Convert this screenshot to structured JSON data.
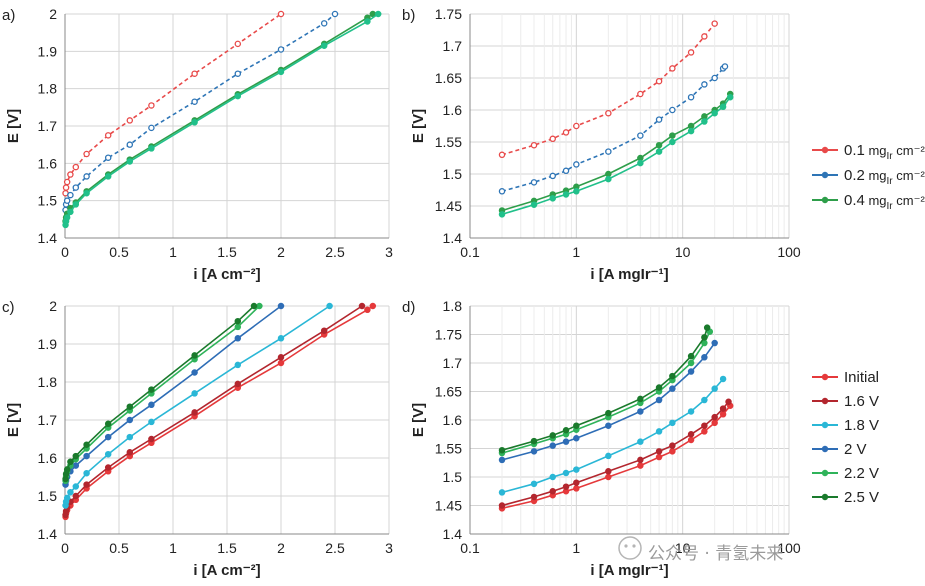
{
  "watermark": "公众号 · 青氢未来",
  "chart_data": [
    {
      "type": "line",
      "panel_label": "a)",
      "xscale": "linear",
      "xlim": [
        0,
        3
      ],
      "xticks": [
        0,
        0.5,
        1,
        1.5,
        2,
        2.5,
        3
      ],
      "ylim": [
        1.4,
        2.0
      ],
      "yticks": [
        1.4,
        1.5,
        1.6,
        1.7,
        1.8,
        1.9,
        2.0
      ],
      "xlabel": "i [A cm⁻²]",
      "ylabel": "E [V]",
      "grid": true,
      "series": [
        {
          "color": "#e84a4a",
          "dashed": true,
          "hollow": true,
          "x": [
            0.005,
            0.01,
            0.02,
            0.05,
            0.1,
            0.2,
            0.4,
            0.6,
            0.8,
            1.2,
            1.6,
            2.0
          ],
          "y": [
            1.52,
            1.535,
            1.55,
            1.57,
            1.59,
            1.625,
            1.675,
            1.715,
            1.755,
            1.84,
            1.92,
            2.0
          ]
        },
        {
          "color": "#2e75b6",
          "dashed": true,
          "hollow": true,
          "x": [
            0.005,
            0.01,
            0.02,
            0.05,
            0.1,
            0.2,
            0.4,
            0.6,
            0.8,
            1.2,
            1.6,
            2.0,
            2.4,
            2.5
          ],
          "y": [
            1.475,
            1.49,
            1.5,
            1.515,
            1.535,
            1.565,
            1.615,
            1.65,
            1.695,
            1.765,
            1.84,
            1.905,
            1.975,
            2.0
          ]
        },
        {
          "color": "#2e9e4a",
          "dashed": false,
          "hollow": false,
          "x": [
            0.005,
            0.01,
            0.02,
            0.05,
            0.1,
            0.2,
            0.4,
            0.6,
            0.8,
            1.2,
            1.6,
            2.0,
            2.4,
            2.8,
            2.85
          ],
          "y": [
            1.445,
            1.455,
            1.465,
            1.48,
            1.495,
            1.525,
            1.57,
            1.61,
            1.645,
            1.715,
            1.785,
            1.85,
            1.92,
            1.99,
            2.0
          ]
        },
        {
          "color": "#21c08a",
          "dashed": false,
          "hollow": false,
          "x": [
            0.005,
            0.01,
            0.02,
            0.05,
            0.1,
            0.2,
            0.4,
            0.6,
            0.8,
            1.2,
            1.6,
            2.0,
            2.4,
            2.8,
            2.9
          ],
          "y": [
            1.435,
            1.445,
            1.455,
            1.47,
            1.49,
            1.52,
            1.565,
            1.605,
            1.64,
            1.71,
            1.78,
            1.845,
            1.915,
            1.98,
            2.0
          ]
        }
      ]
    },
    {
      "type": "line",
      "panel_label": "b)",
      "xscale": "log",
      "xlim": [
        0.1,
        100
      ],
      "xticks": [
        0.1,
        1,
        10,
        100
      ],
      "ylim": [
        1.4,
        1.75
      ],
      "yticks": [
        1.4,
        1.45,
        1.5,
        1.55,
        1.6,
        1.65,
        1.7,
        1.75
      ],
      "xlabel": "i [A mgIr⁻¹]",
      "ylabel": "E [V]",
      "grid": true,
      "legend": {
        "position": "right",
        "entries": [
          {
            "color": "#e84a4a",
            "label": "0.1",
            "unit_main": " mg",
            "unit_sub": "Ir",
            "unit_tail": " cm⁻²"
          },
          {
            "color": "#2e75b6",
            "label": "0.2",
            "unit_main": " mg",
            "unit_sub": "Ir",
            "unit_tail": " cm⁻²"
          },
          {
            "color": "#2e9e4a",
            "label": "0.4",
            "unit_main": " mg",
            "unit_sub": "Ir",
            "unit_tail": " cm⁻²"
          }
        ]
      },
      "series": [
        {
          "color": "#e84a4a",
          "dashed": true,
          "hollow": true,
          "x": [
            0.2,
            0.4,
            0.6,
            0.8,
            1,
            2,
            4,
            6,
            8,
            12,
            16,
            20
          ],
          "y": [
            1.53,
            1.545,
            1.555,
            1.565,
            1.575,
            1.595,
            1.625,
            1.645,
            1.665,
            1.69,
            1.715,
            1.735
          ]
        },
        {
          "color": "#2e75b6",
          "dashed": true,
          "hollow": true,
          "x": [
            0.2,
            0.4,
            0.6,
            0.8,
            1,
            2,
            4,
            6,
            8,
            12,
            16,
            20,
            24,
            25
          ],
          "y": [
            1.473,
            1.487,
            1.497,
            1.505,
            1.515,
            1.535,
            1.56,
            1.585,
            1.6,
            1.62,
            1.64,
            1.65,
            1.665,
            1.668
          ]
        },
        {
          "color": "#2e9e4a",
          "dashed": false,
          "hollow": false,
          "x": [
            0.2,
            0.4,
            0.6,
            0.8,
            1,
            2,
            4,
            6,
            8,
            12,
            16,
            20,
            24,
            28
          ],
          "y": [
            1.443,
            1.458,
            1.468,
            1.474,
            1.48,
            1.5,
            1.525,
            1.545,
            1.56,
            1.575,
            1.59,
            1.6,
            1.61,
            1.625
          ]
        },
        {
          "color": "#21c08a",
          "dashed": false,
          "hollow": false,
          "x": [
            0.2,
            0.4,
            0.6,
            0.8,
            1,
            2,
            4,
            6,
            8,
            12,
            16,
            20,
            24,
            28
          ],
          "y": [
            1.437,
            1.452,
            1.462,
            1.468,
            1.473,
            1.492,
            1.517,
            1.535,
            1.55,
            1.567,
            1.582,
            1.595,
            1.605,
            1.62
          ]
        }
      ]
    },
    {
      "type": "line",
      "panel_label": "c)",
      "xscale": "linear",
      "xlim": [
        0,
        3
      ],
      "xticks": [
        0,
        0.5,
        1,
        1.5,
        2,
        2.5,
        3
      ],
      "ylim": [
        1.4,
        2.0
      ],
      "yticks": [
        1.4,
        1.5,
        1.6,
        1.7,
        1.8,
        1.9,
        2.0
      ],
      "xlabel": "i [A cm⁻²]",
      "ylabel": "E [V]",
      "grid": true,
      "series": [
        {
          "name": "Initial",
          "color": "#e5393b",
          "x": [
            0.005,
            0.01,
            0.02,
            0.05,
            0.1,
            0.2,
            0.4,
            0.6,
            0.8,
            1.2,
            1.6,
            2.0,
            2.4,
            2.8,
            2.85
          ],
          "y": [
            1.445,
            1.455,
            1.463,
            1.475,
            1.49,
            1.52,
            1.565,
            1.605,
            1.64,
            1.71,
            1.785,
            1.85,
            1.925,
            1.99,
            2.0
          ]
        },
        {
          "name": "1.6 V",
          "color": "#b3262e",
          "x": [
            0.005,
            0.01,
            0.02,
            0.05,
            0.1,
            0.2,
            0.4,
            0.6,
            0.8,
            1.2,
            1.6,
            2.0,
            2.4,
            2.75
          ],
          "y": [
            1.45,
            1.46,
            1.47,
            1.485,
            1.5,
            1.53,
            1.575,
            1.615,
            1.65,
            1.72,
            1.795,
            1.865,
            1.935,
            2.0
          ]
        },
        {
          "name": "1.8 V",
          "color": "#2ab7d6",
          "x": [
            0.005,
            0.01,
            0.02,
            0.05,
            0.1,
            0.2,
            0.4,
            0.6,
            0.8,
            1.2,
            1.6,
            2.0,
            2.45
          ],
          "y": [
            1.475,
            1.485,
            1.495,
            1.51,
            1.525,
            1.56,
            1.61,
            1.655,
            1.695,
            1.77,
            1.845,
            1.915,
            2.0
          ]
        },
        {
          "name": "2 V",
          "color": "#2e6db6",
          "x": [
            0.005,
            0.01,
            0.02,
            0.05,
            0.1,
            0.2,
            0.4,
            0.6,
            0.8,
            1.2,
            1.6,
            2.0
          ],
          "y": [
            1.53,
            1.54,
            1.55,
            1.565,
            1.58,
            1.605,
            1.655,
            1.7,
            1.74,
            1.825,
            1.915,
            2.0
          ]
        },
        {
          "name": "2.2 V",
          "color": "#2fb35a",
          "x": [
            0.005,
            0.01,
            0.02,
            0.05,
            0.1,
            0.2,
            0.4,
            0.6,
            0.8,
            1.2,
            1.6,
            1.8
          ],
          "y": [
            1.54,
            1.552,
            1.565,
            1.58,
            1.597,
            1.625,
            1.68,
            1.725,
            1.77,
            1.86,
            1.945,
            2.0
          ]
        },
        {
          "name": "2.5 V",
          "color": "#1a7a2c",
          "x": [
            0.005,
            0.01,
            0.02,
            0.05,
            0.1,
            0.2,
            0.4,
            0.6,
            0.8,
            1.2,
            1.6,
            1.75
          ],
          "y": [
            1.545,
            1.558,
            1.57,
            1.59,
            1.605,
            1.635,
            1.69,
            1.735,
            1.78,
            1.87,
            1.96,
            2.0
          ]
        }
      ]
    },
    {
      "type": "line",
      "panel_label": "d)",
      "xscale": "log",
      "xlim": [
        0.1,
        100
      ],
      "xticks": [
        0.1,
        1,
        10,
        100
      ],
      "ylim": [
        1.4,
        1.8
      ],
      "yticks": [
        1.4,
        1.45,
        1.5,
        1.55,
        1.6,
        1.65,
        1.7,
        1.75,
        1.8
      ],
      "xlabel": "i [A mgIr⁻¹]",
      "ylabel": "E [V]",
      "grid": true,
      "legend": {
        "position": "right",
        "entries": [
          {
            "color": "#e5393b",
            "label": "Initial"
          },
          {
            "color": "#b3262e",
            "label": "1.6 V"
          },
          {
            "color": "#2ab7d6",
            "label": "1.8 V"
          },
          {
            "color": "#2e6db6",
            "label": "2 V"
          },
          {
            "color": "#2fb35a",
            "label": "2.2 V"
          },
          {
            "color": "#1a7a2c",
            "label": "2.5 V"
          }
        ]
      },
      "series": [
        {
          "name": "Initial",
          "color": "#e5393b",
          "x": [
            0.2,
            0.4,
            0.6,
            0.8,
            1,
            2,
            4,
            6,
            8,
            12,
            16,
            20,
            24,
            28
          ],
          "y": [
            1.445,
            1.458,
            1.468,
            1.475,
            1.48,
            1.5,
            1.52,
            1.535,
            1.545,
            1.565,
            1.58,
            1.595,
            1.61,
            1.625
          ]
        },
        {
          "name": "1.6 V",
          "color": "#b3262e",
          "x": [
            0.2,
            0.4,
            0.6,
            0.8,
            1,
            2,
            4,
            6,
            8,
            12,
            16,
            20,
            24,
            27
          ],
          "y": [
            1.45,
            1.465,
            1.475,
            1.483,
            1.49,
            1.51,
            1.53,
            1.545,
            1.555,
            1.575,
            1.59,
            1.605,
            1.62,
            1.632
          ]
        },
        {
          "name": "1.8 V",
          "color": "#2ab7d6",
          "x": [
            0.2,
            0.4,
            0.6,
            0.8,
            1,
            2,
            4,
            6,
            8,
            12,
            16,
            20,
            24
          ],
          "y": [
            1.473,
            1.488,
            1.5,
            1.507,
            1.513,
            1.537,
            1.562,
            1.58,
            1.595,
            1.615,
            1.635,
            1.655,
            1.672
          ]
        },
        {
          "name": "2 V",
          "color": "#2e6db6",
          "x": [
            0.2,
            0.4,
            0.6,
            0.8,
            1,
            2,
            4,
            6,
            8,
            12,
            16,
            20
          ],
          "y": [
            1.53,
            1.545,
            1.555,
            1.562,
            1.568,
            1.59,
            1.615,
            1.635,
            1.655,
            1.685,
            1.71,
            1.735
          ]
        },
        {
          "name": "2.2 V",
          "color": "#2fb35a",
          "x": [
            0.2,
            0.4,
            0.6,
            0.8,
            1,
            2,
            4,
            6,
            8,
            12,
            16,
            18
          ],
          "y": [
            1.542,
            1.558,
            1.568,
            1.575,
            1.583,
            1.605,
            1.63,
            1.65,
            1.67,
            1.7,
            1.735,
            1.755
          ]
        },
        {
          "name": "2.5 V",
          "color": "#1a7a2c",
          "x": [
            0.2,
            0.4,
            0.6,
            0.8,
            1,
            2,
            4,
            6,
            8,
            12,
            16,
            17
          ],
          "y": [
            1.547,
            1.563,
            1.573,
            1.582,
            1.59,
            1.612,
            1.637,
            1.657,
            1.677,
            1.712,
            1.745,
            1.762
          ]
        }
      ]
    }
  ]
}
